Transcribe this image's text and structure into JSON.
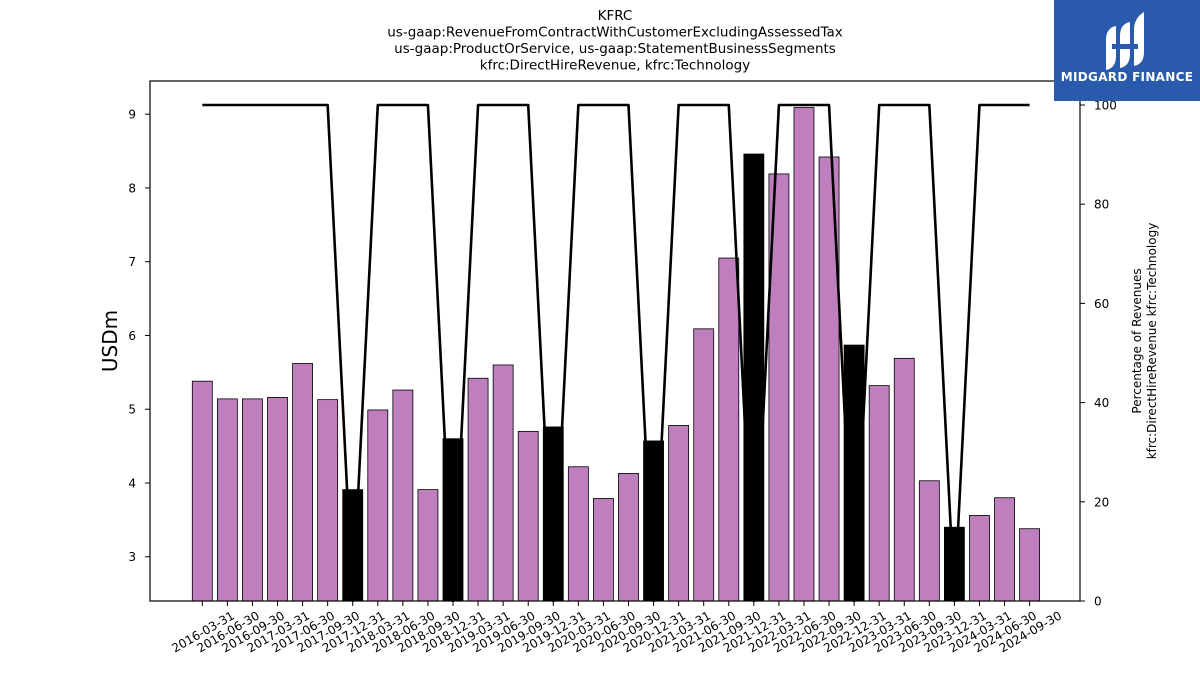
{
  "brand": {
    "name": "MIDGARD FINANCE",
    "bg_color": "#2a5aab",
    "logo_icon": "midgard-logo-icon"
  },
  "chart_data": {
    "type": "bar",
    "title_lines": [
      "KFRC",
      "us-gaap:RevenueFromContractWithCustomerExcludingAssessedTax",
      "us-gaap:ProductOrService, us-gaap:StatementBusinessSegments",
      "kfrc:DirectHireRevenue, kfrc:Technology"
    ],
    "ylabel": "USDm",
    "ylabel_right_lines": [
      "Percentage of Revenues",
      "kfrc:DirectHireRevenue kfrc:Technology"
    ],
    "ylim": [
      2.4,
      9.45
    ],
    "yticks": [
      3,
      4,
      5,
      6,
      7,
      8,
      9
    ],
    "ylim_right": [
      0,
      100
    ],
    "yticks_right": [
      0,
      20,
      40,
      60,
      80,
      100
    ],
    "grid": false,
    "bar_color": "#bf7fbf",
    "highlight_color": "#000000",
    "line_color": "#000000",
    "categories": [
      "2016-03-31",
      "2016-06-30",
      "2016-09-30",
      "2017-03-31",
      "2017-06-30",
      "2017-09-30",
      "2017-12-31",
      "2018-03-31",
      "2018-06-30",
      "2018-09-30",
      "2018-12-31",
      "2019-03-31",
      "2019-06-30",
      "2019-09-30",
      "2019-12-31",
      "2020-03-31",
      "2020-06-30",
      "2020-09-30",
      "2020-12-31",
      "2021-03-31",
      "2021-06-30",
      "2021-09-30",
      "2021-12-31",
      "2022-03-31",
      "2022-06-30",
      "2022-09-30",
      "2022-12-31",
      "2023-03-31",
      "2023-06-30",
      "2023-09-30",
      "2023-12-31",
      "2024-03-31",
      "2024-06-30",
      "2024-09-30"
    ],
    "series": [
      {
        "values": [
          5.38,
          5.14,
          5.14,
          5.16,
          5.62,
          5.13,
          3.91,
          4.99,
          5.26,
          3.91,
          4.6,
          5.42,
          5.6,
          4.7,
          4.76,
          4.22,
          3.79,
          4.13,
          4.57,
          4.78,
          6.09,
          7.05,
          8.46,
          8.19,
          9.09,
          8.42,
          5.87,
          5.32,
          5.69,
          4.03,
          3.4,
          3.56,
          3.8,
          3.38
        ],
        "highlight": [
          false,
          false,
          false,
          false,
          false,
          false,
          true,
          false,
          false,
          false,
          true,
          false,
          false,
          false,
          true,
          false,
          false,
          false,
          true,
          false,
          false,
          false,
          true,
          false,
          false,
          false,
          true,
          false,
          false,
          false,
          true,
          false,
          false,
          false
        ]
      },
      {
        "axis": "right",
        "type": "line",
        "values": [
          100,
          100,
          100,
          100,
          100,
          100,
          0,
          100,
          100,
          100,
          0,
          100,
          100,
          100,
          0,
          100,
          100,
          100,
          0,
          100,
          100,
          100,
          0,
          100,
          100,
          100,
          0,
          100,
          100,
          100,
          0,
          100,
          100,
          100
        ]
      }
    ]
  }
}
